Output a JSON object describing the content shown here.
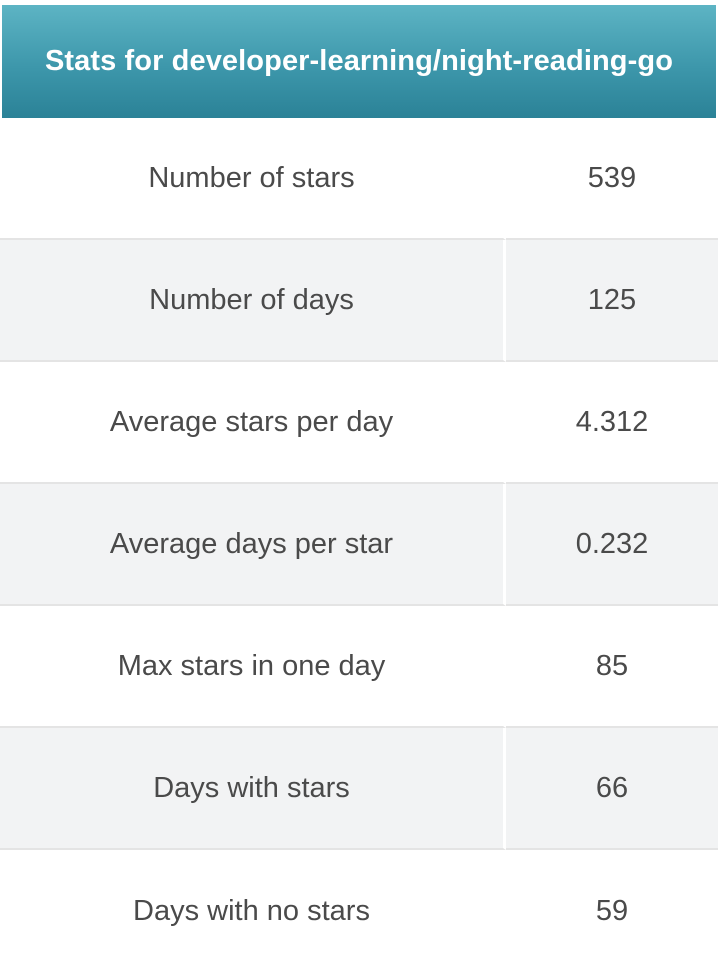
{
  "header": {
    "title": "Stats for developer-learning/night-reading-go"
  },
  "rows": [
    {
      "label": "Number of stars",
      "value": "539"
    },
    {
      "label": "Number of days",
      "value": "125"
    },
    {
      "label": "Average stars per day",
      "value": "4.312"
    },
    {
      "label": "Average days per star",
      "value": "0.232"
    },
    {
      "label": "Max stars in one day",
      "value": "85"
    },
    {
      "label": "Days with stars",
      "value": "66"
    },
    {
      "label": "Days with no stars",
      "value": "59"
    }
  ],
  "colors": {
    "header_gradient_top": "#5db4c4",
    "header_gradient_bottom": "#2b8297",
    "header_text": "#ffffff",
    "body_text": "#4a4a4a",
    "alt_row_bg": "#f2f3f4"
  }
}
